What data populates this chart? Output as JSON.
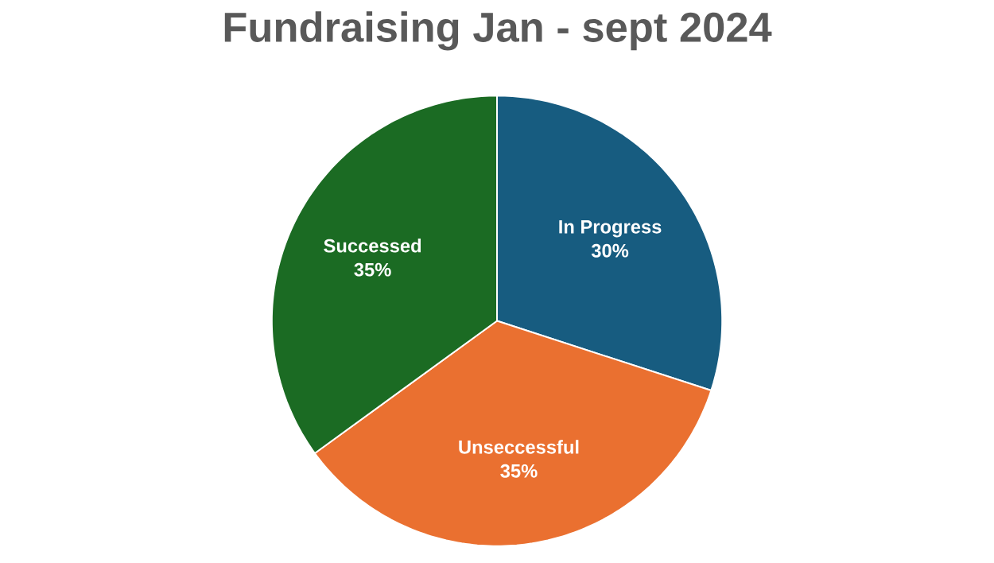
{
  "chart_data": {
    "type": "pie",
    "title": "Fundraising Jan - sept 2024",
    "categories": [
      "In Progress",
      "Unseccessful",
      "Successed"
    ],
    "values": [
      30,
      35,
      35
    ],
    "value_labels": [
      "30%",
      "35%",
      "35%"
    ],
    "colors": [
      "#175c80",
      "#ea7030",
      "#1b6b23"
    ]
  }
}
